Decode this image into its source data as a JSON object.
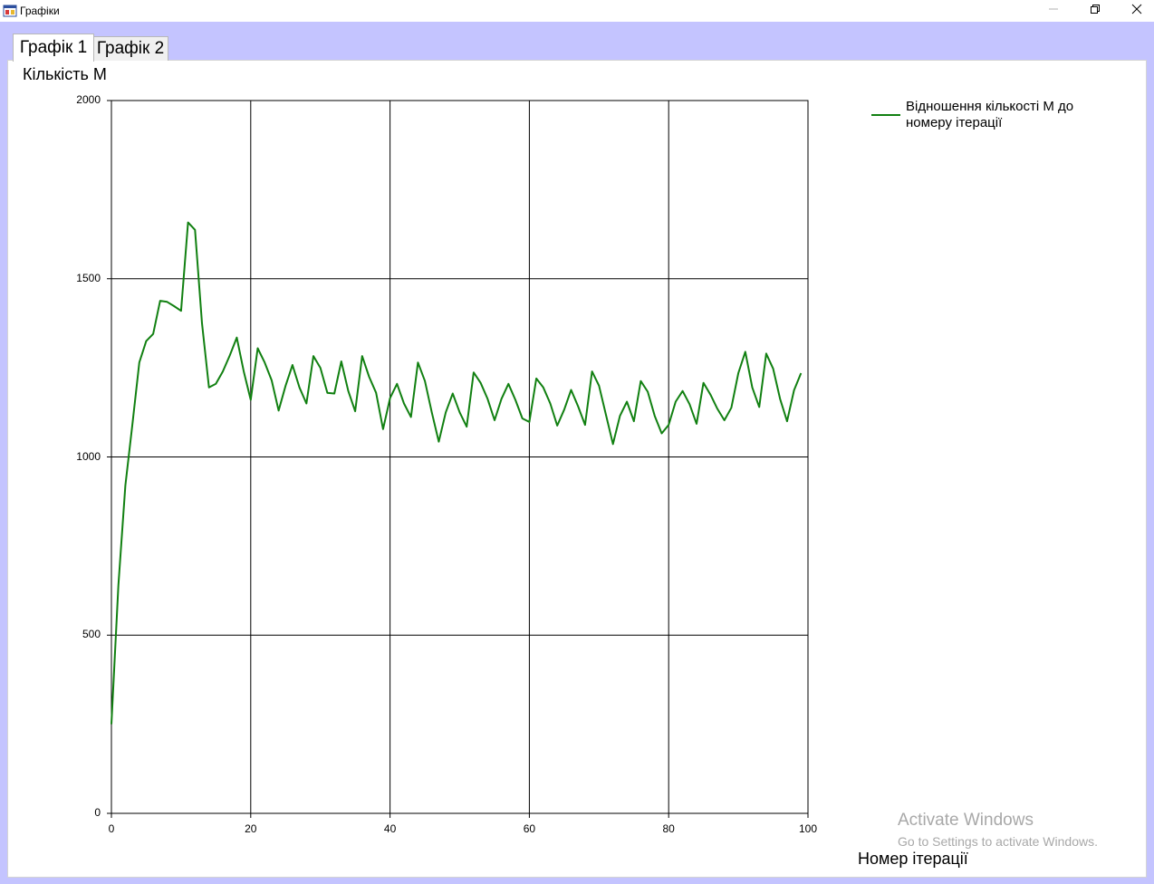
{
  "window": {
    "title": "Графіки"
  },
  "tabs": [
    {
      "label": "Графік 1",
      "selected": true
    },
    {
      "label": "Графік 2",
      "selected": false
    }
  ],
  "colors": {
    "series": "#118011",
    "client_background": "#c4c4ff"
  },
  "icons": [
    "app-icon",
    "minimize-icon",
    "restore-icon",
    "close-icon"
  ],
  "chart_data": {
    "type": "line",
    "title": "",
    "ylabel": "Кількість М",
    "xlabel": "Номер ітерації",
    "xlim": [
      0,
      100
    ],
    "ylim": [
      0,
      2000
    ],
    "x_ticks": [
      "0",
      "20",
      "40",
      "60",
      "80",
      "100"
    ],
    "y_ticks": [
      "0",
      "500",
      "1000",
      "1500",
      "2000"
    ],
    "grid": true,
    "legend_position": "top-right",
    "series": [
      {
        "name": "Відношення кількості М до номеру ітерації",
        "color": "#118011",
        "x": [
          0,
          1,
          2,
          3,
          4,
          5,
          6,
          7,
          8,
          9,
          10,
          11,
          12,
          13,
          14,
          15,
          16,
          17,
          18,
          19,
          20,
          21,
          22,
          23,
          24,
          25,
          26,
          27,
          28,
          29,
          30,
          31,
          32,
          33,
          34,
          35,
          36,
          37,
          38,
          39,
          40,
          41,
          42,
          43,
          44,
          45,
          46,
          47,
          48,
          49,
          50,
          51,
          52,
          53,
          54,
          55,
          56,
          57,
          58,
          59,
          60,
          61,
          62,
          63,
          64,
          65,
          66,
          67,
          68,
          69,
          70,
          71,
          72,
          73,
          74,
          75,
          76,
          77,
          78,
          79,
          80,
          81,
          82,
          83,
          84,
          85,
          86,
          87,
          88,
          89,
          90,
          91,
          92,
          93,
          94,
          95,
          96,
          97,
          98,
          99
        ],
        "values": [
          250,
          640,
          920,
          1090,
          1265,
          1325,
          1345,
          1438,
          1435,
          1423,
          1410,
          1658,
          1637,
          1375,
          1195,
          1205,
          1240,
          1285,
          1335,
          1240,
          1160,
          1305,
          1265,
          1215,
          1130,
          1200,
          1258,
          1195,
          1150,
          1283,
          1250,
          1180,
          1178,
          1268,
          1185,
          1128,
          1283,
          1225,
          1180,
          1078,
          1165,
          1205,
          1150,
          1112,
          1265,
          1213,
          1125,
          1043,
          1125,
          1178,
          1125,
          1085,
          1237,
          1208,
          1163,
          1103,
          1163,
          1205,
          1160,
          1108,
          1098,
          1220,
          1195,
          1150,
          1088,
          1133,
          1188,
          1142,
          1090,
          1240,
          1200,
          1118,
          1036,
          1115,
          1155,
          1100,
          1213,
          1183,
          1115,
          1066,
          1090,
          1155,
          1185,
          1148,
          1093,
          1208,
          1175,
          1135,
          1103,
          1138,
          1235,
          1295,
          1195,
          1140,
          1290,
          1248,
          1163,
          1100,
          1187,
          1235
        ]
      }
    ]
  },
  "watermark": {
    "title": "Activate Windows",
    "subtitle": "Go to Settings to activate Windows."
  }
}
